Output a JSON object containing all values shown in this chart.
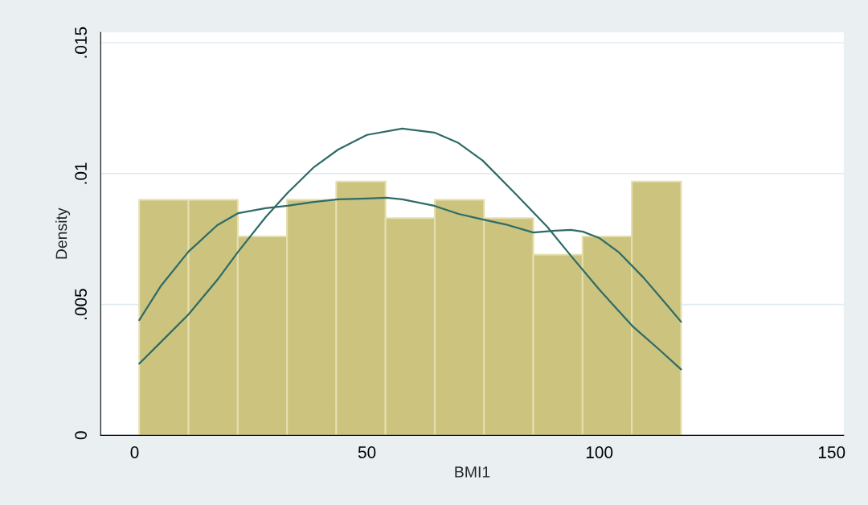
{
  "chart_data": {
    "type": "histogram",
    "xlabel": "BMI1",
    "ylabel": "Density",
    "bins": [
      1,
      11.6,
      22.2,
      32.8,
      43.4,
      54.0,
      64.6,
      75.2,
      85.8,
      96.4,
      107.0,
      117.6
    ],
    "values": [
      0.009,
      0.009,
      0.0076,
      0.009,
      0.0097,
      0.0083,
      0.009,
      0.0083,
      0.0069,
      0.0076,
      0.0097
    ],
    "color": "#cbc37e",
    "series": [
      {
        "type": "line",
        "color": "#2e6b68",
        "x": [
          1,
          5.7,
          11.6,
          17.8,
          22.3,
          28.2,
          32.9,
          38.6,
          43.8,
          50,
          54.2,
          57.6,
          64.5,
          69.7,
          74.9,
          79.8,
          85.8,
          90.5,
          93.9,
          96.5,
          100,
          104.3,
          109.5,
          114.7,
          117.6
        ],
        "values": [
          0.0044,
          0.00572,
          0.00702,
          0.00803,
          0.00849,
          0.00868,
          0.00877,
          0.00892,
          0.00902,
          0.00905,
          0.00908,
          0.00902,
          0.00877,
          0.00846,
          0.00825,
          0.00806,
          0.00775,
          0.00782,
          0.00785,
          0.00778,
          0.00754,
          0.00698,
          0.00603,
          0.00495,
          0.00434
        ]
      },
      {
        "type": "line",
        "color": "#2e6b68",
        "x": [
          1,
          5.7,
          11.6,
          17.8,
          22.3,
          28.2,
          32.9,
          38.6,
          43.8,
          50,
          57.6,
          64.5,
          69.7,
          74.9,
          81.8,
          88.8,
          93.9,
          100,
          107.1,
          113,
          117.6
        ],
        "values": [
          0.00274,
          0.00357,
          0.00462,
          0.00594,
          0.00702,
          0.00834,
          0.00926,
          0.01025,
          0.01092,
          0.01148,
          0.01172,
          0.01157,
          0.01117,
          0.0105,
          0.00926,
          0.00797,
          0.00686,
          0.00557,
          0.00418,
          0.00326,
          0.00252
        ]
      }
    ],
    "xlim": [
      -7.3,
      152.6
    ],
    "ylim": [
      0,
      0.0154
    ],
    "xticks": [
      0,
      50,
      100,
      150
    ],
    "yticks": [
      0,
      {
        "value": 0.005,
        "label": ".005"
      },
      {
        "value": 0.01,
        "label": ".01"
      },
      {
        "value": 0.015,
        "label": ".015"
      }
    ],
    "grid": "y"
  }
}
